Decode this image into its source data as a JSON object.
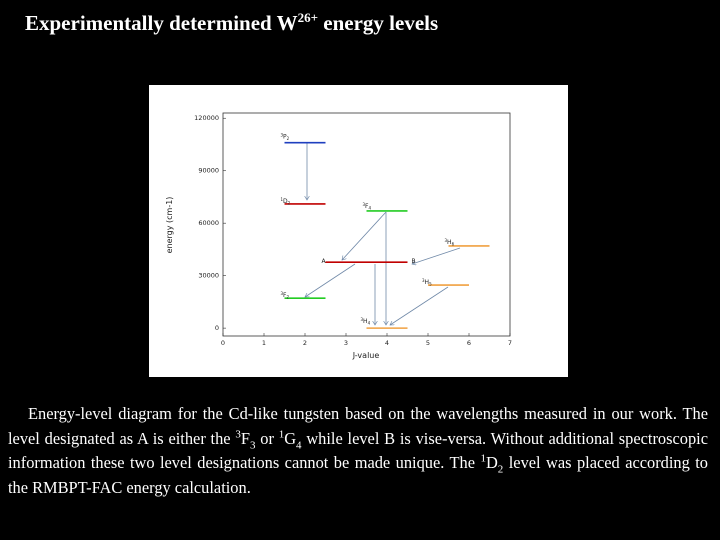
{
  "title": [
    "Experimentally determined W",
    "26+",
    " energy levels"
  ],
  "caption": [
    "Energy-level diagram for the Cd-like tungsten based on the wavelengths measured in our work. The level designated as A is either the ",
    "3",
    "F",
    "3",
    " or ",
    "1",
    "G",
    "4",
    " while level B is vise-versa. Without additional spectroscopic information these two level designations cannot be made unique. The ",
    "1",
    "D",
    "2",
    " level was placed according to the RMBPT-FAC energy calculation."
  ],
  "chart_data": {
    "type": "energy-levels",
    "xlabel": "J-value",
    "ylabel": "energy (cm-1)",
    "xlim": [
      0,
      7
    ],
    "xticks": [
      0,
      1,
      2,
      3,
      4,
      5,
      6,
      7
    ],
    "ylim": [
      -4500,
      123000
    ],
    "yticks": [
      0,
      30000,
      60000,
      90000,
      120000
    ],
    "levels": [
      {
        "label": {
          "sup": "3",
          "main": "P",
          "sub": "2"
        },
        "j": 2,
        "energy": 106000,
        "color": "#1f3fbf"
      },
      {
        "label": {
          "sup": "1",
          "main": "D",
          "sub": "2"
        },
        "j": 2,
        "energy": 71000,
        "color": "#c00000"
      },
      {
        "label": {
          "sup": "3",
          "main": "F",
          "sub": "4"
        },
        "j": 4,
        "energy": 67000,
        "color": "#22cc22"
      },
      {
        "label": {
          "sup": "3",
          "main": "H",
          "sub": "6"
        },
        "j": 6,
        "energy": 47000,
        "color": "#f0a040"
      },
      {
        "label": {
          "main": "A"
        },
        "j": 3,
        "energy": 37700,
        "color": "#c00000"
      },
      {
        "label": {
          "main": "B"
        },
        "j": 4,
        "energy": 37700,
        "color": "#c00000"
      },
      {
        "label": {
          "sup": "3",
          "main": "H",
          "sub": "5"
        },
        "j": 5.5,
        "energy": 24600,
        "color": "#f0a040"
      },
      {
        "label": {
          "sup": "3",
          "main": "F",
          "sub": "2"
        },
        "j": 2,
        "energy": 17100,
        "color": "#22cc22"
      },
      {
        "label": {
          "sup": "3",
          "main": "H",
          "sub": "4"
        },
        "j": 4,
        "energy": 0,
        "color": "#f0a040"
      }
    ]
  }
}
